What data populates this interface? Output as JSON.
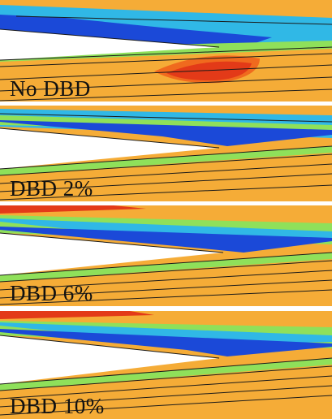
{
  "figure": {
    "panels": [
      {
        "label": "No DBD"
      },
      {
        "label": "DBD 2%"
      },
      {
        "label": "DBD 6%"
      },
      {
        "label": "DBD 10%"
      }
    ],
    "colors": {
      "background": "#ffffff",
      "freestream": "#f5ac37",
      "low_speed": "#1b49d8",
      "mid_speed": "#30b8e6",
      "transition": "#8fe05a",
      "high_speed": "#f06a1e",
      "peak": "#e33a18",
      "streamline": "#1a1a1a"
    }
  }
}
